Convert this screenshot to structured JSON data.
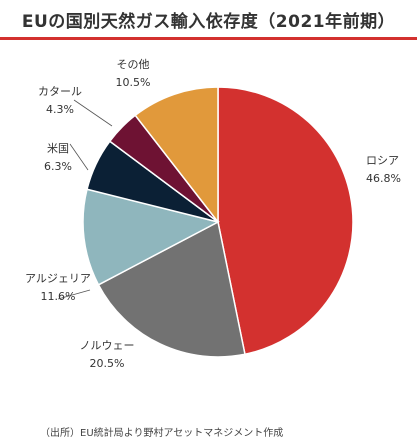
{
  "chart_data": {
    "type": "pie",
    "title": "EUの国別天然ガス輸入依存度（2021年前期）",
    "categories": [
      "ロシア",
      "ノルウェー",
      "アルジェリア",
      "米国",
      "カタール",
      "その他"
    ],
    "values": [
      46.8,
      20.5,
      11.6,
      6.3,
      4.3,
      10.5
    ],
    "value_labels": [
      "46.8%",
      "20.5%",
      "11.6%",
      "6.3%",
      "4.3%",
      "10.5%"
    ],
    "colors": [
      "#d3312f",
      "#727272",
      "#8fb6bd",
      "#0b2035",
      "#6e1233",
      "#e1993b"
    ],
    "start_angle_deg": 0,
    "direction": "clockwise",
    "legend": "none (direct labels)",
    "source": "（出所）EU統計局より野村アセットマネジメント作成"
  }
}
